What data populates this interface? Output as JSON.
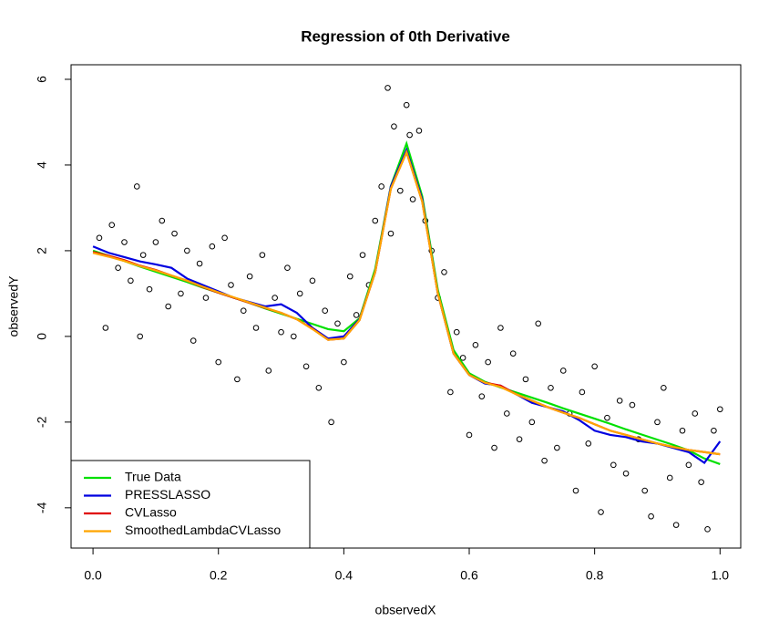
{
  "chart_data": {
    "type": "scatter",
    "title": "Regression of 0th Derivative",
    "x_label": "observedX",
    "y_label": "observedY",
    "xlim": [
      -0.035,
      1.033
    ],
    "ylim": [
      -4.94,
      6.34
    ],
    "xticks": [
      {
        "value": 0,
        "label": "0.0"
      },
      0.2,
      0.4,
      0.6,
      0.8,
      {
        "value": 1,
        "label": "1.0"
      }
    ],
    "yticks": [
      -4,
      -2,
      0,
      2,
      4,
      6
    ],
    "legend": "bottom-left",
    "points": {
      "x": [
        0.01,
        0.02,
        0.03,
        0.04,
        0.05,
        0.06,
        0.07,
        0.075,
        0.08,
        0.09,
        0.1,
        0.11,
        0.12,
        0.13,
        0.14,
        0.15,
        0.16,
        0.17,
        0.18,
        0.19,
        0.2,
        0.21,
        0.22,
        0.23,
        0.24,
        0.25,
        0.26,
        0.27,
        0.28,
        0.29,
        0.3,
        0.31,
        0.32,
        0.33,
        0.34,
        0.35,
        0.36,
        0.37,
        0.38,
        0.39,
        0.4,
        0.41,
        0.42,
        0.43,
        0.44,
        0.45,
        0.46,
        0.47,
        0.475,
        0.48,
        0.49,
        0.5,
        0.505,
        0.51,
        0.52,
        0.53,
        0.54,
        0.55,
        0.56,
        0.57,
        0.58,
        0.59,
        0.6,
        0.61,
        0.62,
        0.63,
        0.64,
        0.65,
        0.66,
        0.67,
        0.68,
        0.69,
        0.7,
        0.71,
        0.72,
        0.73,
        0.74,
        0.75,
        0.76,
        0.77,
        0.78,
        0.79,
        0.8,
        0.81,
        0.82,
        0.83,
        0.84,
        0.85,
        0.86,
        0.87,
        0.88,
        0.89,
        0.9,
        0.91,
        0.92,
        0.93,
        0.94,
        0.95,
        0.96,
        0.97,
        0.98,
        0.99,
        1.0
      ],
      "y": [
        2.3,
        0.2,
        2.6,
        1.6,
        2.2,
        1.3,
        3.5,
        0.0,
        1.9,
        1.1,
        2.2,
        2.7,
        0.7,
        2.4,
        1.0,
        2.0,
        -0.1,
        1.7,
        0.9,
        2.1,
        -0.6,
        2.3,
        1.2,
        -1.0,
        0.6,
        1.4,
        0.2,
        1.9,
        -0.8,
        0.9,
        0.1,
        1.6,
        0.0,
        1.0,
        -0.7,
        1.3,
        -1.2,
        0.6,
        -2.0,
        0.3,
        -0.6,
        1.4,
        0.5,
        1.9,
        1.2,
        2.7,
        3.5,
        5.8,
        2.4,
        4.9,
        3.4,
        5.4,
        4.7,
        3.2,
        4.8,
        2.7,
        2.0,
        0.9,
        1.5,
        -1.3,
        0.1,
        -0.5,
        -2.3,
        -0.2,
        -1.4,
        -0.6,
        -2.6,
        0.2,
        -1.8,
        -0.4,
        -2.4,
        -1.0,
        -2.0,
        0.3,
        -2.9,
        -1.2,
        -2.6,
        -0.8,
        -1.8,
        -3.6,
        -1.3,
        -2.5,
        -0.7,
        -4.1,
        -1.9,
        -3.0,
        -1.5,
        -3.2,
        -1.6,
        -2.4,
        -3.6,
        -4.2,
        -2.0,
        -1.2,
        -3.3,
        -4.4,
        -2.2,
        -3.0,
        -1.8,
        -3.4,
        -4.5,
        -2.2,
        -1.7
      ]
    },
    "x": [
      0,
      0.025,
      0.05,
      0.075,
      0.1,
      0.125,
      0.15,
      0.175,
      0.2,
      0.225,
      0.25,
      0.275,
      0.3,
      0.325,
      0.35,
      0.375,
      0.4,
      0.425,
      0.45,
      0.475,
      0.5,
      0.525,
      0.55,
      0.575,
      0.6,
      0.625,
      0.65,
      0.675,
      0.7,
      0.725,
      0.75,
      0.775,
      0.8,
      0.825,
      0.85,
      0.875,
      0.9,
      0.925,
      0.95,
      0.975,
      1.0
    ],
    "series": [
      {
        "name": "True Data",
        "color": "#00e000",
        "values": [
          2.0,
          1.88,
          1.76,
          1.63,
          1.51,
          1.39,
          1.27,
          1.14,
          1.02,
          0.9,
          0.78,
          0.65,
          0.53,
          0.41,
          0.29,
          0.17,
          0.12,
          0.42,
          1.57,
          3.51,
          4.5,
          3.27,
          1.08,
          -0.32,
          -0.86,
          -1.06,
          -1.19,
          -1.31,
          -1.43,
          -1.55,
          -1.68,
          -1.8,
          -1.92,
          -2.04,
          -2.17,
          -2.29,
          -2.41,
          -2.53,
          -2.66,
          -2.85,
          -2.98
        ]
      },
      {
        "name": "PRESSLASSO",
        "color": "#0000e0",
        "values": [
          2.1,
          1.95,
          1.85,
          1.75,
          1.68,
          1.6,
          1.35,
          1.2,
          1.05,
          0.9,
          0.8,
          0.7,
          0.75,
          0.55,
          0.2,
          -0.05,
          0.0,
          0.4,
          1.5,
          3.5,
          4.35,
          3.2,
          1.0,
          -0.4,
          -0.9,
          -1.1,
          -1.15,
          -1.35,
          -1.55,
          -1.65,
          -1.75,
          -1.95,
          -2.2,
          -2.3,
          -2.35,
          -2.45,
          -2.5,
          -2.6,
          -2.7,
          -2.95,
          -2.45
        ]
      },
      {
        "name": "CVLasso",
        "color": "#e00000",
        "values": [
          1.97,
          1.88,
          1.78,
          1.65,
          1.55,
          1.42,
          1.3,
          1.15,
          1.02,
          0.9,
          0.78,
          0.66,
          0.55,
          0.4,
          0.18,
          -0.08,
          -0.05,
          0.38,
          1.5,
          3.45,
          4.3,
          3.15,
          1.0,
          -0.4,
          -0.9,
          -1.08,
          -1.15,
          -1.35,
          -1.5,
          -1.65,
          -1.78,
          -1.9,
          -2.05,
          -2.2,
          -2.3,
          -2.4,
          -2.5,
          -2.58,
          -2.65,
          -2.7,
          -2.75
        ]
      },
      {
        "name": "SmoothedLambdaCVLasso",
        "color": "#ffa500",
        "values": [
          1.95,
          1.86,
          1.76,
          1.64,
          1.54,
          1.42,
          1.3,
          1.16,
          1.03,
          0.91,
          0.79,
          0.67,
          0.55,
          0.4,
          0.17,
          -0.08,
          -0.05,
          0.38,
          1.5,
          3.45,
          4.3,
          3.15,
          1.0,
          -0.4,
          -0.9,
          -1.08,
          -1.18,
          -1.35,
          -1.5,
          -1.65,
          -1.78,
          -1.9,
          -2.05,
          -2.2,
          -2.3,
          -2.4,
          -2.5,
          -2.58,
          -2.65,
          -2.7,
          -2.75
        ]
      }
    ]
  }
}
